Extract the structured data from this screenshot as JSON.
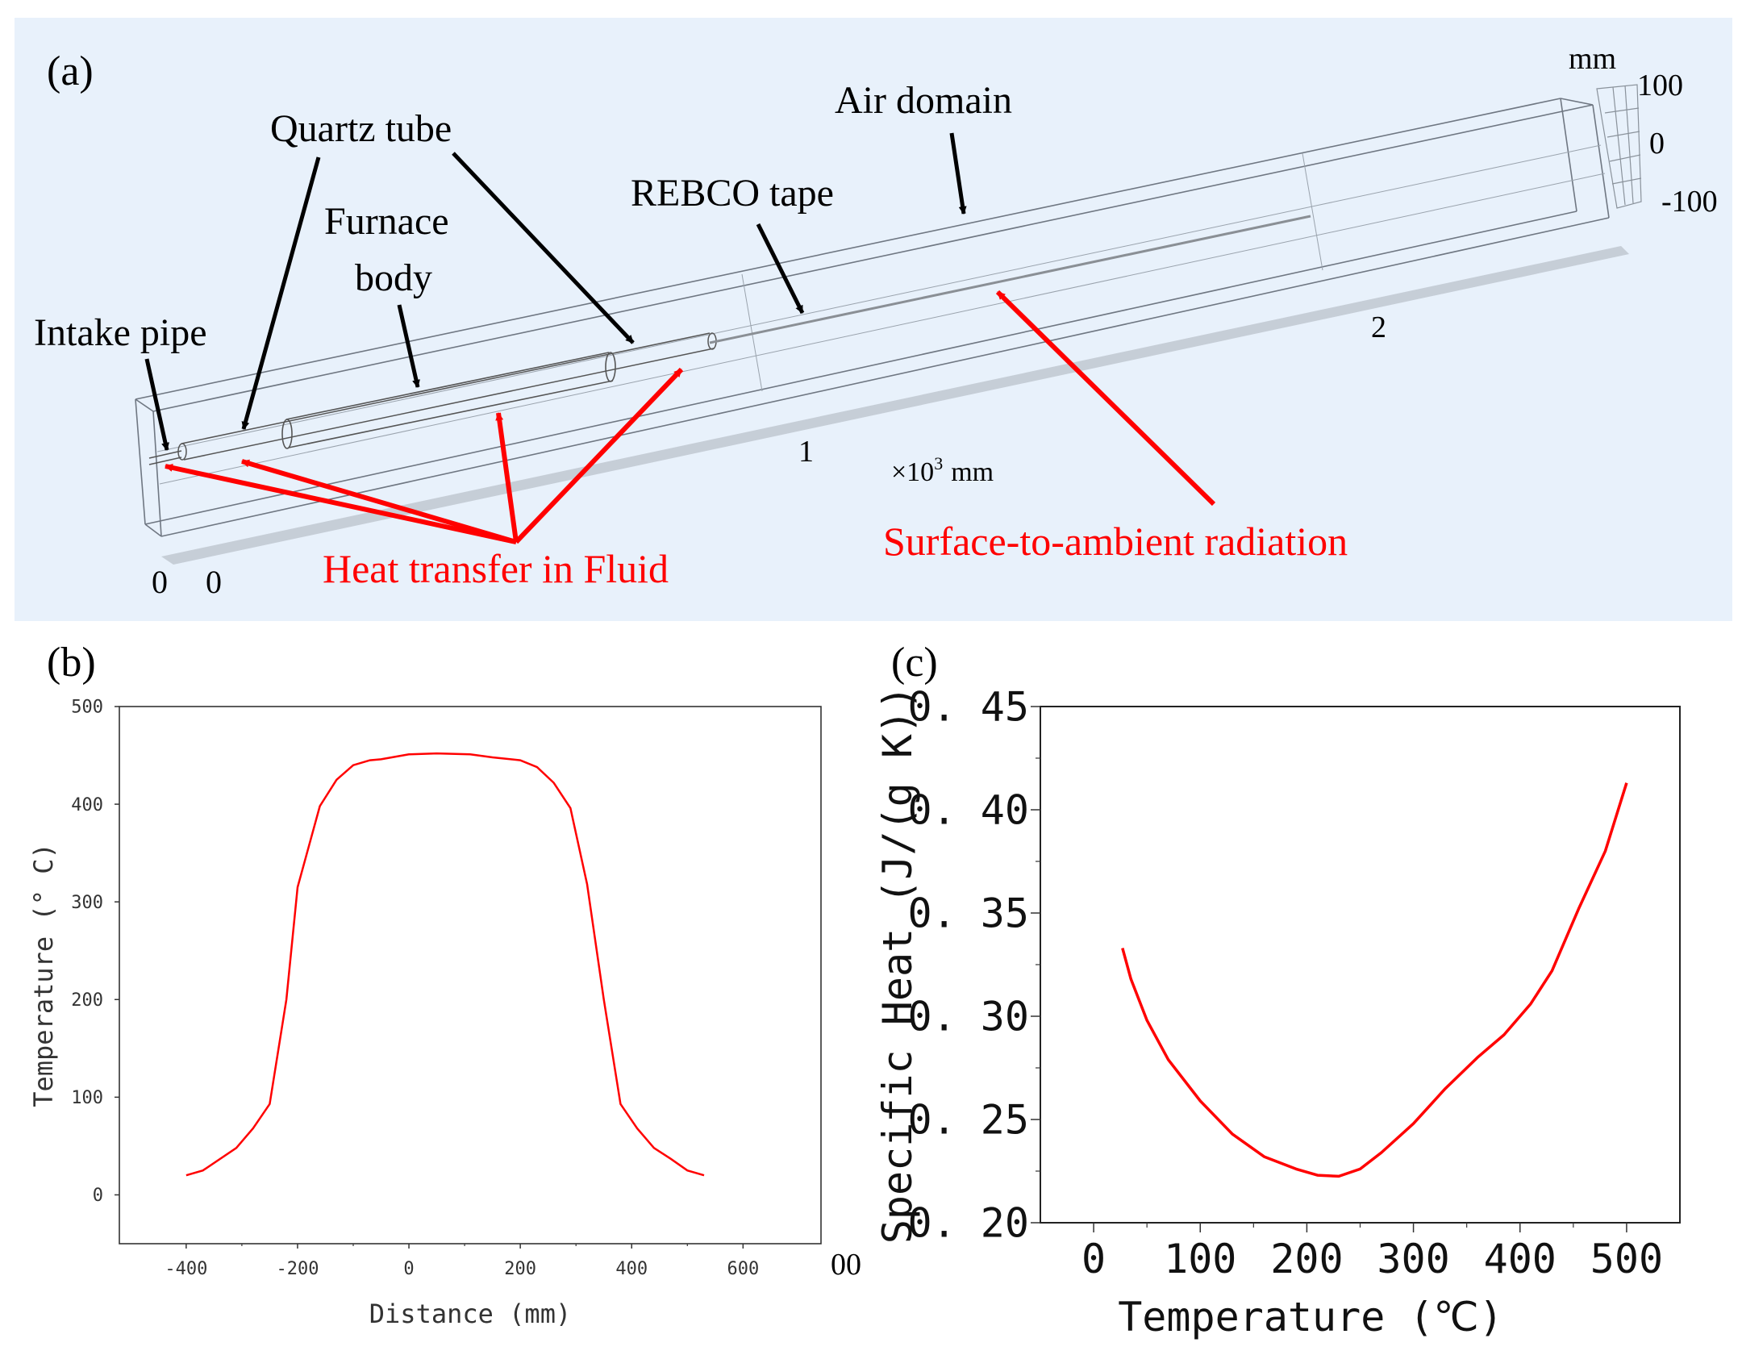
{
  "panel_a": {
    "label": "(a)",
    "annotations": {
      "quartz_tube": "Quartz tube",
      "air_domain": "Air domain",
      "furnace_body_line1": "Furnace",
      "furnace_body_line2": "body",
      "rebco_tape": "REBCO tape",
      "intake_pipe": "Intake pipe",
      "heat_transfer": "Heat transfer in Fluid",
      "radiation": "Surface-to-ambient radiation"
    },
    "scale": {
      "unit_mm": "mm",
      "t100": "100",
      "t0": "0",
      "tm100": "-100",
      "axis_1": "1",
      "axis_2": "2",
      "axis_unit": "×10",
      "axis_unit_exp": "3",
      "axis_unit_mm": "mm",
      "origin_0a": "0",
      "origin_0b": "0"
    },
    "colors": {
      "background": "#e8f1fb",
      "arrow_red": "#ff0000",
      "arrow_black": "#000000"
    }
  },
  "stray_text": "00",
  "chart_data": [
    {
      "panel": "(b)",
      "type": "line",
      "title": "",
      "xlabel": "Distance (mm)",
      "ylabel": "Temperature (° C)",
      "xlim": [
        -520,
        740
      ],
      "ylim": [
        -50,
        500
      ],
      "xticks": [
        -400,
        -200,
        0,
        200,
        400,
        600
      ],
      "yticks": [
        0,
        100,
        200,
        300,
        400,
        500
      ],
      "color": "#ff0000",
      "series": [
        {
          "name": "Temperature",
          "x": [
            -400,
            -370,
            -310,
            -280,
            -250,
            -220,
            -200,
            -160,
            -130,
            -100,
            -70,
            -50,
            0,
            50,
            110,
            150,
            200,
            230,
            260,
            290,
            320,
            350,
            380,
            410,
            440,
            470,
            500,
            530
          ],
          "y": [
            20,
            25,
            48,
            68,
            93,
            200,
            315,
            398,
            425,
            440,
            445,
            446,
            451,
            452,
            451,
            448,
            445,
            438,
            422,
            396,
            318,
            200,
            93,
            68,
            48,
            37,
            25,
            20
          ]
        }
      ]
    },
    {
      "panel": "(c)",
      "type": "line",
      "title": "",
      "xlabel": "Temperature (℃)",
      "ylabel": "Specific Heat (J/(g K))",
      "xlim": [
        -50,
        550
      ],
      "ylim": [
        0.2,
        0.45
      ],
      "xticks": [
        0,
        100,
        200,
        300,
        400,
        500
      ],
      "yticks": [
        0.2,
        0.25,
        0.3,
        0.35,
        0.4,
        0.45
      ],
      "ytick_labels": [
        "0. 20",
        "0. 25",
        "0. 30",
        "0. 35",
        "0. 40",
        "0. 45"
      ],
      "color": "#ff0000",
      "series": [
        {
          "name": "Specific heat",
          "x": [
            27,
            35,
            50,
            70,
            100,
            130,
            160,
            190,
            210,
            230,
            250,
            270,
            300,
            330,
            360,
            385,
            410,
            430,
            455,
            480,
            500
          ],
          "y": [
            0.333,
            0.318,
            0.298,
            0.279,
            0.259,
            0.243,
            0.232,
            0.226,
            0.223,
            0.2225,
            0.226,
            0.234,
            0.248,
            0.265,
            0.28,
            0.291,
            0.306,
            0.322,
            0.352,
            0.38,
            0.413
          ]
        }
      ]
    }
  ]
}
